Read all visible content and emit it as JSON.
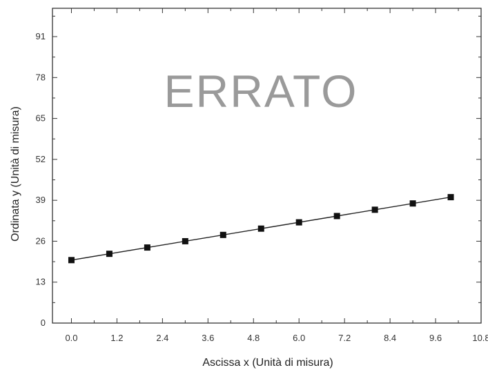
{
  "chart_data": {
    "type": "scatter",
    "xlabel": "Ascissa x (Unità di misura)",
    "ylabel": "Ordinata y (Unità di misura)",
    "annotation": "ERRATO",
    "xlim": [
      -0.5,
      10.8
    ],
    "ylim": [
      0,
      100
    ],
    "xticks": [
      "0.0",
      "1.2",
      "2.4",
      "3.6",
      "4.8",
      "6.0",
      "7.2",
      "8.4",
      "9.6",
      "10.8"
    ],
    "yticks": [
      "0",
      "13",
      "26",
      "39",
      "52",
      "65",
      "78",
      "91"
    ],
    "grid": false,
    "legend": "none",
    "series": [
      {
        "marker": "square",
        "x": [
          0,
          1,
          2,
          3,
          4,
          5,
          6,
          7,
          8,
          9,
          10
        ],
        "y": [
          20,
          22,
          24,
          26,
          28,
          30,
          32,
          34,
          36,
          38,
          40
        ]
      }
    ],
    "fit_line": {
      "intercept": 20,
      "slope": 2,
      "x_range": [
        0,
        10
      ]
    },
    "colors": {
      "marker": "#111111",
      "line": "#222222",
      "axes": "#333333",
      "annotation": "#9a9a9a"
    }
  }
}
